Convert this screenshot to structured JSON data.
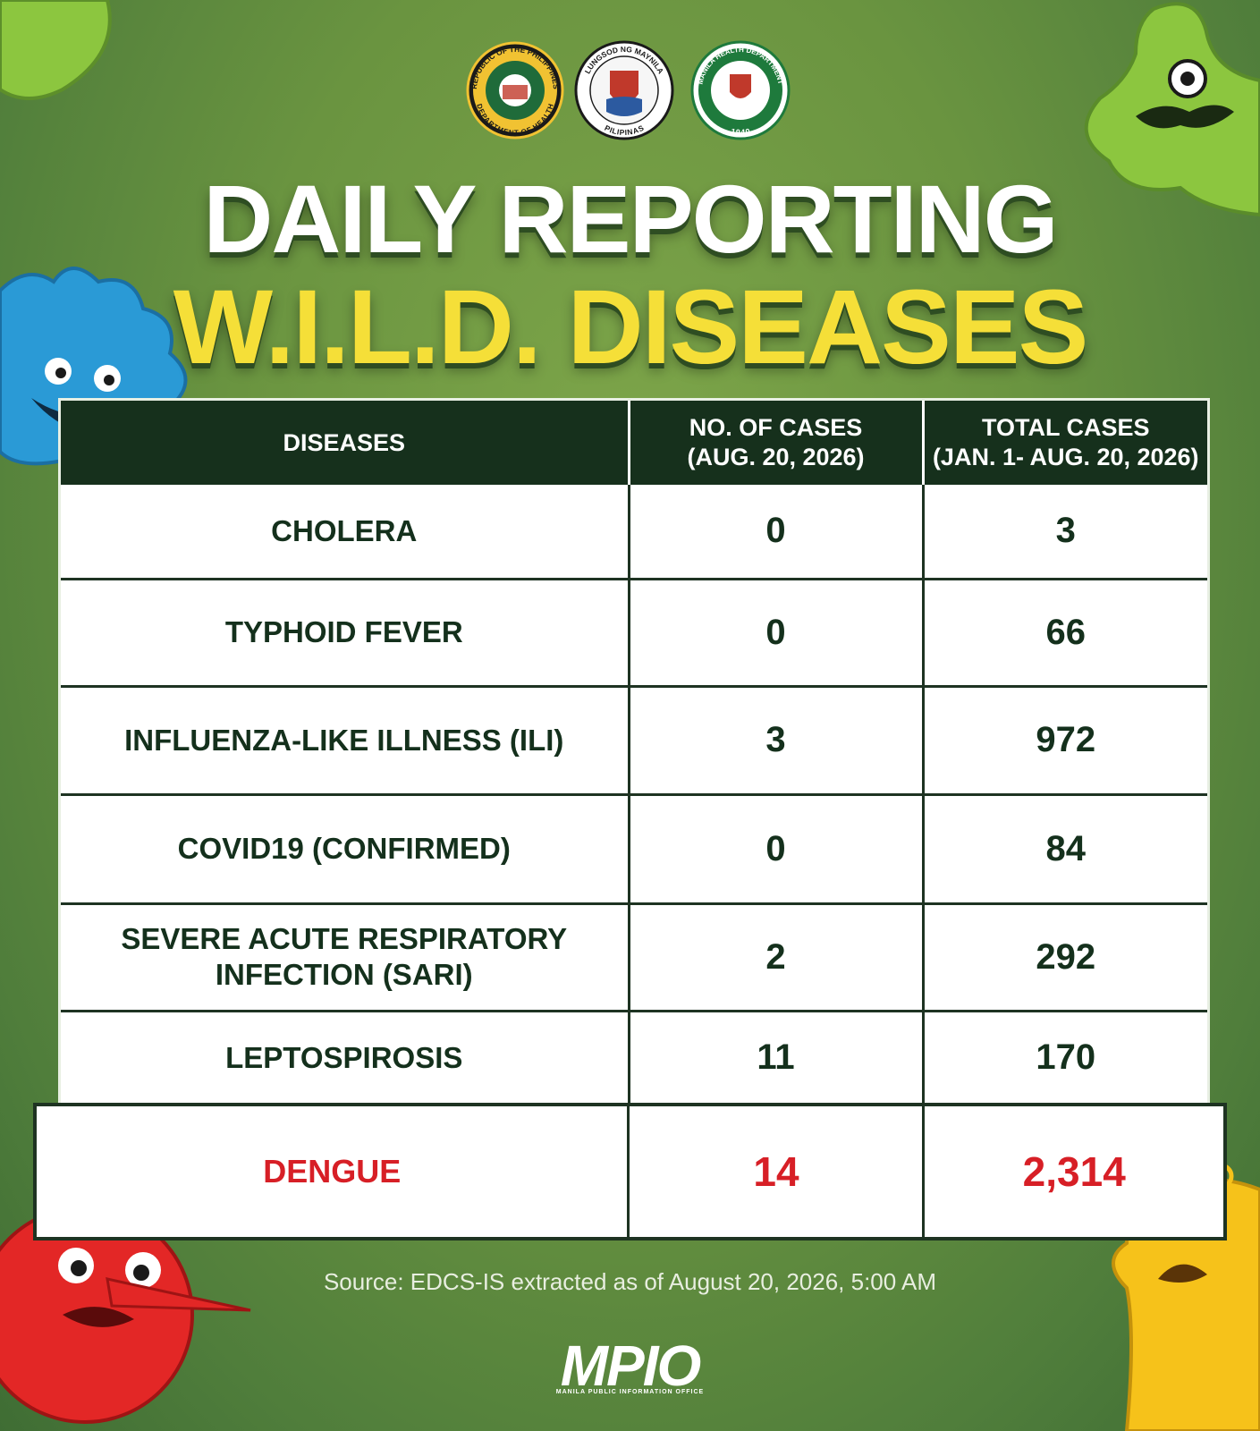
{
  "logos": {
    "doh": {
      "top": "REPUBLIC OF THE PHILIPPINES",
      "bottom": "DEPARTMENT OF HEALTH"
    },
    "manila": {
      "top": "LUNGSOD NG MAYNILA",
      "bottom": "PILIPINAS"
    },
    "mhd": {
      "top": "MANILA HEALTH DEPARTMENT",
      "bottom": "1940"
    }
  },
  "title": {
    "line1": "DAILY REPORTING",
    "line2": "W.I.L.D. DISEASES"
  },
  "table": {
    "header": [
      [
        "DISEASES"
      ],
      [
        "NO. OF CASES",
        "(AUG. 20, 2026)"
      ],
      [
        "TOTAL CASES",
        "(JAN. 1- AUG. 20, 2026)"
      ]
    ],
    "rows": [
      [
        "CHOLERA",
        "0",
        "3"
      ],
      [
        "TYPHOID FEVER",
        "0",
        "66"
      ],
      [
        "INFLUENZA-LIKE ILLNESS (ILI)",
        "3",
        "972"
      ],
      [
        "COVID19 (CONFIRMED)",
        "0",
        "84"
      ],
      [
        "SEVERE ACUTE RESPIRATORY INFECTION (SARI)",
        "2",
        "292"
      ],
      [
        "LEPTOSPIROSIS",
        "11",
        "170"
      ],
      [
        "DENGUE",
        "14",
        "2,314"
      ]
    ]
  },
  "source": "Source: EDCS-IS extracted as of August 20, 2026, 5:00 AM",
  "footer": {
    "logo": "MPIO",
    "subtitle": "MANILA PUBLIC INFORMATION OFFICE"
  }
}
